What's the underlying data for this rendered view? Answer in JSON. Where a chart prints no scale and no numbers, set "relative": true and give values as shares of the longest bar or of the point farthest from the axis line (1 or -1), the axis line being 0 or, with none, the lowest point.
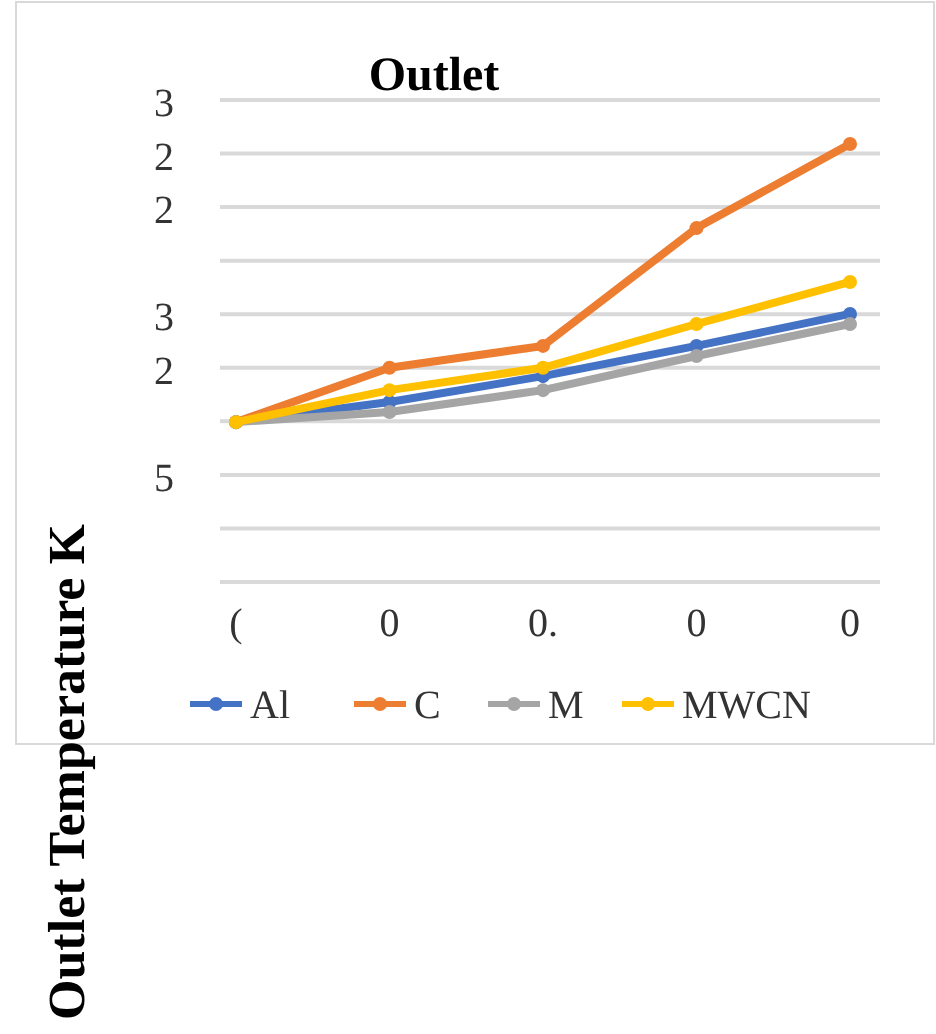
{
  "chart_data": {
    "type": "line",
    "title": "Outlet",
    "ylabel": "Outlet Temperature K",
    "relative": true,
    "grid": "y",
    "legend": "bottom",
    "marker": "circle",
    "categories": [
      "(",
      "0",
      "0.",
      "0",
      "0"
    ],
    "annotations": [
      "3",
      "2",
      "2",
      "3",
      "2",
      "5"
    ],
    "series": [
      {
        "name": "Al",
        "color": "#4472c4",
        "values": [
          0.365,
          0.411,
          0.47,
          0.539,
          0.612
        ]
      },
      {
        "name": "C",
        "color": "#ed7d31",
        "values": [
          0.365,
          0.489,
          0.539,
          0.808,
          1
        ]
      },
      {
        "name": "M",
        "color": "#a5a5a5",
        "values": [
          0.365,
          0.388,
          0.438,
          0.516,
          0.589
        ]
      },
      {
        "name": "MWCN",
        "color": "#ffc000",
        "values": [
          0.365,
          0.438,
          0.489,
          0.589,
          0.685
        ]
      }
    ]
  }
}
